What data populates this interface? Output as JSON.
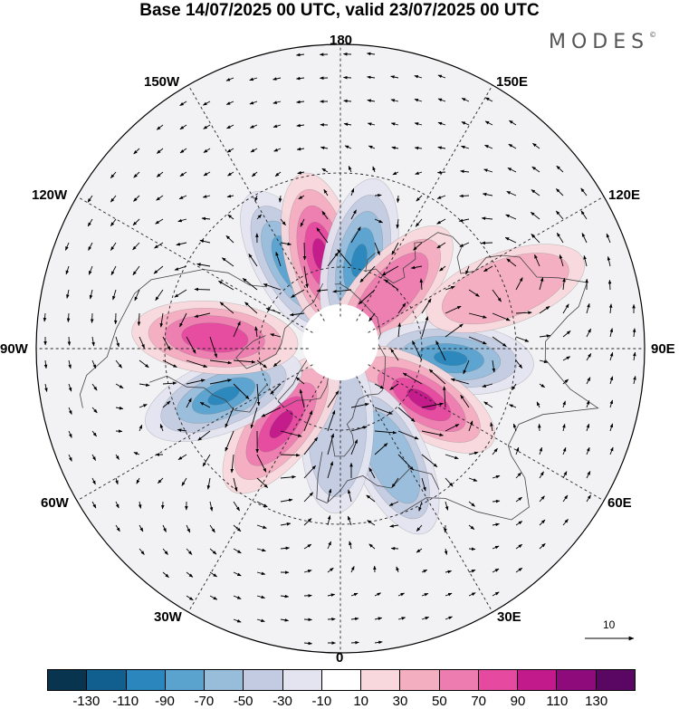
{
  "title": "Base 14/07/2025 00 UTC, valid 23/07/2025 00 UTC",
  "logo": "MODES",
  "longitude_labels": {
    "top": "180",
    "top_right": "150E",
    "right_upper": "120E",
    "right": "90E",
    "right_lower": "60E",
    "bottom_right": "30E",
    "bottom": "0",
    "bottom_left": "30W",
    "left_lower": "60W",
    "left": "90W",
    "left_upper": "120W",
    "top_left": "150W"
  },
  "reference_vector": "10",
  "colorbar": {
    "labels": [
      "-130",
      "-110",
      "-90",
      "-70",
      "-50",
      "-30",
      "-10",
      "10",
      "30",
      "50",
      "70",
      "90",
      "110",
      "130"
    ],
    "colors": [
      "#08344f",
      "#105f8e",
      "#2a86bc",
      "#5aa3cf",
      "#98bddb",
      "#c3cbe2",
      "#e3e4f0",
      "#ffffff",
      "#f8d8dc",
      "#f3aec0",
      "#ed7db0",
      "#e54aa0",
      "#c21a8a",
      "#8e0b7b",
      "#5a0763"
    ]
  },
  "anomalies": [
    {
      "name": "neg-150W",
      "lon": -150,
      "lat": 55,
      "sign": -1,
      "level": 3
    },
    {
      "name": "pos-170W",
      "lon": -168,
      "lat": 55,
      "sign": 1,
      "level": 4
    },
    {
      "name": "neg-170E",
      "lon": 168,
      "lat": 57,
      "sign": -1,
      "level": 4
    },
    {
      "name": "pos-140E",
      "lon": 138,
      "lat": 62,
      "sign": 1,
      "level": 2
    },
    {
      "name": "neg-90E",
      "lon": 85,
      "lat": 50,
      "sign": -1,
      "level": 4
    },
    {
      "name": "pos-60E",
      "lon": 58,
      "lat": 55,
      "sign": 1,
      "level": 4
    },
    {
      "name": "neg-30E",
      "lon": 25,
      "lat": 47,
      "sign": -1,
      "level": 2
    },
    {
      "name": "neg-10W",
      "lon": -2,
      "lat": 60,
      "sign": -1,
      "level": 1
    },
    {
      "name": "pos-40W",
      "lon": -38,
      "lat": 55,
      "sign": 1,
      "level": 4
    },
    {
      "name": "neg-70W",
      "lon": -68,
      "lat": 45,
      "sign": -1,
      "level": 4
    },
    {
      "name": "pos-90W",
      "lon": -95,
      "lat": 45,
      "sign": 1,
      "level": 3
    },
    {
      "name": "pos-110E",
      "lon": 110,
      "lat": 30,
      "sign": 1,
      "level": 1
    }
  ]
}
